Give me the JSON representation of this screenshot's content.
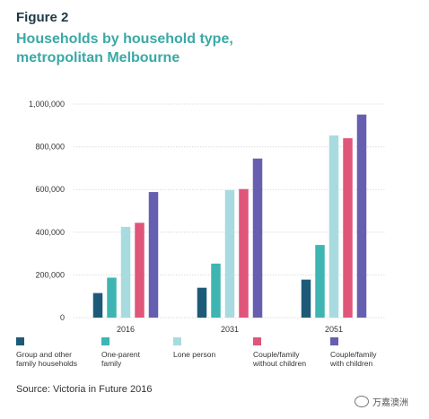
{
  "figure_label": "Figure 2",
  "title_line1": "Households by household type,",
  "title_line2": "metropolitan Melbourne",
  "source": "Source: Victoria in Future 2016",
  "watermark": "万嘉澳洲",
  "chart_data": {
    "type": "bar",
    "title": "Households by household type, metropolitan Melbourne",
    "xlabel": "",
    "ylabel": "",
    "categories": [
      "2016",
      "2031",
      "2051"
    ],
    "ylim": [
      0,
      1000000
    ],
    "yticks": [
      0,
      200000,
      400000,
      600000,
      800000,
      1000000
    ],
    "ytick_labels": [
      "0",
      "200,000",
      "400,000",
      "600,000",
      "800,000",
      "1,000,000"
    ],
    "grid": true,
    "legend_position": "bottom",
    "series": [
      {
        "name": "Group and other family households",
        "color": "#1d5a78",
        "values": [
          115000,
          140000,
          178000
        ]
      },
      {
        "name": "One-parent family",
        "color": "#3eb5b2",
        "values": [
          187000,
          253000,
          340000
        ]
      },
      {
        "name": "Lone person",
        "color": "#a8dbe0",
        "values": [
          425000,
          597000,
          853000
        ]
      },
      {
        "name": "Couple/family without children",
        "color": "#e0557a",
        "values": [
          444000,
          602000,
          840000
        ]
      },
      {
        "name": "Couple/family with children",
        "color": "#665fb0",
        "values": [
          588000,
          745000,
          951000
        ]
      }
    ]
  },
  "legend": [
    {
      "label": "Group and other\nfamily households"
    },
    {
      "label": "One-parent\nfamily"
    },
    {
      "label": "Lone person"
    },
    {
      "label": "Couple/family\nwithout children"
    },
    {
      "label": "Couple/family\nwith children"
    }
  ]
}
